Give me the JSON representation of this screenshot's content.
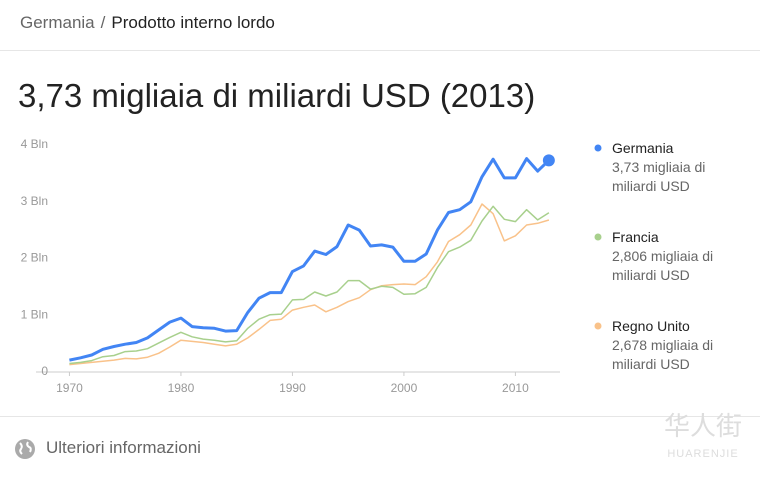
{
  "breadcrumb": {
    "parent": "Germania",
    "separator": "/",
    "current": "Prodotto interno lordo"
  },
  "chart_data": {
    "type": "line",
    "title": "3,73 migliaia di miliardi USD (2013)",
    "x": [
      1970,
      1971,
      1972,
      1973,
      1974,
      1975,
      1976,
      1977,
      1978,
      1979,
      1980,
      1981,
      1982,
      1983,
      1984,
      1985,
      1986,
      1987,
      1988,
      1989,
      1990,
      1991,
      1992,
      1993,
      1994,
      1995,
      1996,
      1997,
      1998,
      1999,
      2000,
      2001,
      2002,
      2003,
      2004,
      2005,
      2006,
      2007,
      2008,
      2009,
      2010,
      2011,
      2012,
      2013
    ],
    "xlim": [
      1967,
      2014
    ],
    "xticks": [
      1970,
      1980,
      1990,
      2000,
      2010
    ],
    "ylim": [
      0,
      4
    ],
    "yticks": [
      0,
      {
        "value": 1,
        "label": "1 Bln"
      },
      {
        "value": 2,
        "label": "2 Bln"
      },
      {
        "value": 3,
        "label": "3 Bln"
      },
      {
        "value": 4,
        "label": "4 Bln"
      }
    ],
    "grid": false,
    "legend": "right",
    "series": [
      {
        "name": "Germania",
        "color": "#4285f4",
        "legend_label": "3,73 migliaia di miliardi USD",
        "values": [
          0.21,
          0.25,
          0.3,
          0.4,
          0.45,
          0.49,
          0.52,
          0.6,
          0.74,
          0.88,
          0.95,
          0.8,
          0.78,
          0.77,
          0.72,
          0.73,
          1.05,
          1.3,
          1.4,
          1.4,
          1.77,
          1.87,
          2.13,
          2.07,
          2.21,
          2.59,
          2.5,
          2.22,
          2.24,
          2.2,
          1.95,
          1.95,
          2.08,
          2.5,
          2.81,
          2.86,
          3.0,
          3.44,
          3.75,
          3.42,
          3.42,
          3.76,
          3.54,
          3.73
        ]
      },
      {
        "name": "Francia",
        "color": "#a8d08d",
        "legend_label": "2,806 migliaia di miliardi USD",
        "values": [
          0.15,
          0.17,
          0.2,
          0.27,
          0.29,
          0.36,
          0.37,
          0.41,
          0.51,
          0.61,
          0.7,
          0.62,
          0.58,
          0.56,
          0.53,
          0.55,
          0.77,
          0.93,
          1.01,
          1.02,
          1.27,
          1.28,
          1.41,
          1.34,
          1.41,
          1.61,
          1.61,
          1.46,
          1.51,
          1.49,
          1.37,
          1.38,
          1.49,
          1.84,
          2.12,
          2.2,
          2.32,
          2.66,
          2.92,
          2.69,
          2.65,
          2.86,
          2.68,
          2.806
        ]
      },
      {
        "name": "Regno Unito",
        "color": "#f9c28a",
        "legend_label": "2,678 migliaia di miliardi USD",
        "values": [
          0.13,
          0.15,
          0.17,
          0.19,
          0.21,
          0.24,
          0.23,
          0.26,
          0.33,
          0.44,
          0.56,
          0.54,
          0.52,
          0.49,
          0.46,
          0.49,
          0.6,
          0.75,
          0.91,
          0.93,
          1.09,
          1.14,
          1.18,
          1.06,
          1.14,
          1.24,
          1.31,
          1.45,
          1.52,
          1.54,
          1.55,
          1.54,
          1.68,
          1.94,
          2.3,
          2.42,
          2.59,
          2.96,
          2.79,
          2.31,
          2.4,
          2.59,
          2.62,
          2.678
        ]
      }
    ]
  },
  "footer": {
    "link": "Ulteriori informazioni"
  },
  "watermark": {
    "chinese": "华人街",
    "latin": "HUARENJIE"
  }
}
